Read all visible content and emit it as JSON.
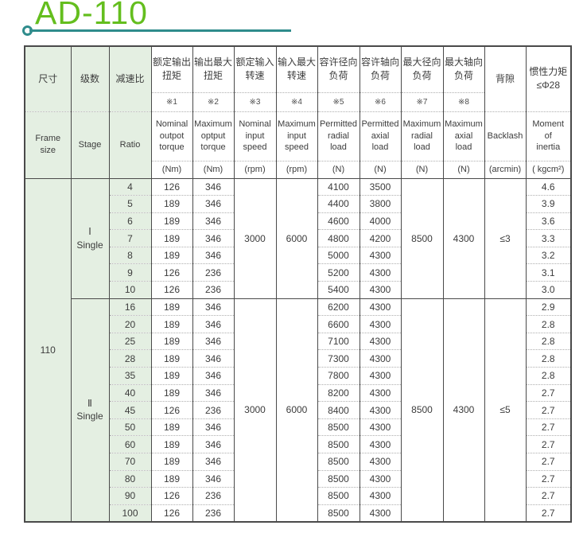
{
  "title": "AD-110",
  "colors": {
    "title_green": "#64be1e",
    "rule_teal": "#2f8c8c",
    "header_green_bg": "#e4efe2",
    "border": "#4a4a4a",
    "dotted_border": "#aeaeae",
    "text": "#3c3c3c"
  },
  "table": {
    "columns": [
      {
        "zh": "尺寸",
        "en": "Frame\nsize"
      },
      {
        "zh": "级数",
        "en": "Stage"
      },
      {
        "zh": "减速比",
        "en": "Ratio"
      },
      {
        "zh": "额定输出\n扭矩",
        "note": "※1",
        "en": "Nominal\noutpot\ntorque",
        "unit": "(Nm)"
      },
      {
        "zh": "输出最大\n扭矩",
        "note": "※2",
        "en": "Maximum\noptput\ntorque",
        "unit": "(Nm)"
      },
      {
        "zh": "额定输入\n转速",
        "note": "※3",
        "en": "Nominal\ninput\nspeed",
        "unit": "(rpm)"
      },
      {
        "zh": "输入最大\n转速",
        "note": "※4",
        "en": "Maximum\ninput\nspeed",
        "unit": "(rpm)"
      },
      {
        "zh": "容许径向\n负荷",
        "note": "※5",
        "en": "Permitted\nradial\nload",
        "unit": "(N)"
      },
      {
        "zh": "容许轴向\n负荷",
        "note": "※6",
        "en": "Permitted\naxial\nload",
        "unit": "(N)"
      },
      {
        "zh": "最大径向\n负荷",
        "note": "※7",
        "en": "Maximum\nradial\nload",
        "unit": "(N)"
      },
      {
        "zh": "最大轴向\n负荷",
        "note": "※8",
        "en": "Maximum\naxial\nload",
        "unit": "(N)"
      },
      {
        "zh": "背隙",
        "en": "Backlash",
        "unit": "(arcmin)"
      },
      {
        "zh": "惯性力矩\n≤Φ28",
        "en": "Moment\nof\ninertia",
        "unit": "( kgcm²)"
      }
    ],
    "frame_size": "110",
    "groups": [
      {
        "stage": "Ⅰ\nSingle",
        "nominal_input_speed": "3000",
        "max_input_speed": "6000",
        "max_radial_load": "8500",
        "max_axial_load": "4300",
        "backlash": "≤3",
        "rows": [
          {
            "ratio": "4",
            "nominal_torque": "126",
            "max_torque": "346",
            "radial_load": "4100",
            "axial_load": "3500",
            "inertia": "4.6"
          },
          {
            "ratio": "5",
            "nominal_torque": "189",
            "max_torque": "346",
            "radial_load": "4400",
            "axial_load": "3800",
            "inertia": "3.9"
          },
          {
            "ratio": "6",
            "nominal_torque": "189",
            "max_torque": "346",
            "radial_load": "4600",
            "axial_load": "4000",
            "inertia": "3.6"
          },
          {
            "ratio": "7",
            "nominal_torque": "189",
            "max_torque": "346",
            "radial_load": "4800",
            "axial_load": "4200",
            "inertia": "3.3"
          },
          {
            "ratio": "8",
            "nominal_torque": "189",
            "max_torque": "346",
            "radial_load": "5000",
            "axial_load": "4300",
            "inertia": "3.2"
          },
          {
            "ratio": "9",
            "nominal_torque": "126",
            "max_torque": "236",
            "radial_load": "5200",
            "axial_load": "4300",
            "inertia": "3.1"
          },
          {
            "ratio": "10",
            "nominal_torque": "126",
            "max_torque": "236",
            "radial_load": "5400",
            "axial_load": "4300",
            "inertia": "3.0"
          }
        ]
      },
      {
        "stage": "Ⅱ\nSingle",
        "nominal_input_speed": "3000",
        "max_input_speed": "6000",
        "max_radial_load": "8500",
        "max_axial_load": "4300",
        "backlash": "≤5",
        "rows": [
          {
            "ratio": "16",
            "nominal_torque": "189",
            "max_torque": "346",
            "radial_load": "6200",
            "axial_load": "4300",
            "inertia": "2.9"
          },
          {
            "ratio": "20",
            "nominal_torque": "189",
            "max_torque": "346",
            "radial_load": "6600",
            "axial_load": "4300",
            "inertia": "2.8"
          },
          {
            "ratio": "25",
            "nominal_torque": "189",
            "max_torque": "346",
            "radial_load": "7100",
            "axial_load": "4300",
            "inertia": "2.8"
          },
          {
            "ratio": "28",
            "nominal_torque": "189",
            "max_torque": "346",
            "radial_load": "7300",
            "axial_load": "4300",
            "inertia": "2.8"
          },
          {
            "ratio": "35",
            "nominal_torque": "189",
            "max_torque": "346",
            "radial_load": "7800",
            "axial_load": "4300",
            "inertia": "2.8"
          },
          {
            "ratio": "40",
            "nominal_torque": "189",
            "max_torque": "346",
            "radial_load": "8200",
            "axial_load": "4300",
            "inertia": "2.7"
          },
          {
            "ratio": "45",
            "nominal_torque": "126",
            "max_torque": "236",
            "radial_load": "8400",
            "axial_load": "4300",
            "inertia": "2.7"
          },
          {
            "ratio": "50",
            "nominal_torque": "189",
            "max_torque": "346",
            "radial_load": "8500",
            "axial_load": "4300",
            "inertia": "2.7"
          },
          {
            "ratio": "60",
            "nominal_torque": "189",
            "max_torque": "346",
            "radial_load": "8500",
            "axial_load": "4300",
            "inertia": "2.7"
          },
          {
            "ratio": "70",
            "nominal_torque": "189",
            "max_torque": "346",
            "radial_load": "8500",
            "axial_load": "4300",
            "inertia": "2.7"
          },
          {
            "ratio": "80",
            "nominal_torque": "189",
            "max_torque": "346",
            "radial_load": "8500",
            "axial_load": "4300",
            "inertia": "2.7"
          },
          {
            "ratio": "90",
            "nominal_torque": "126",
            "max_torque": "236",
            "radial_load": "8500",
            "axial_load": "4300",
            "inertia": "2.7"
          },
          {
            "ratio": "100",
            "nominal_torque": "126",
            "max_torque": "236",
            "radial_load": "8500",
            "axial_load": "4300",
            "inertia": "2.7"
          }
        ]
      }
    ]
  }
}
